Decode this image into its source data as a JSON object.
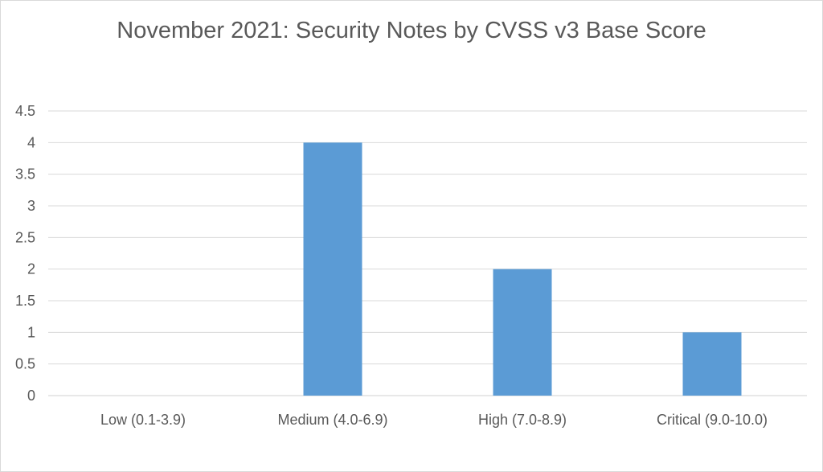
{
  "chart_data": {
    "type": "bar",
    "title": "November 2021: Security Notes by CVSS v3 Base Score",
    "categories": [
      "Low (0.1-3.9)",
      "Medium (4.0-6.9)",
      "High (7.0-8.9)",
      "Critical (9.0-10.0)"
    ],
    "values": [
      0,
      4,
      2,
      1
    ],
    "ylim": [
      0,
      4.5
    ],
    "yticks": [
      "0",
      "0.5",
      "1",
      "1.5",
      "2",
      "2.5",
      "3",
      "3.5",
      "4",
      "4.5"
    ],
    "grid": true,
    "legend": "none",
    "bar_color": "#5b9bd5"
  }
}
